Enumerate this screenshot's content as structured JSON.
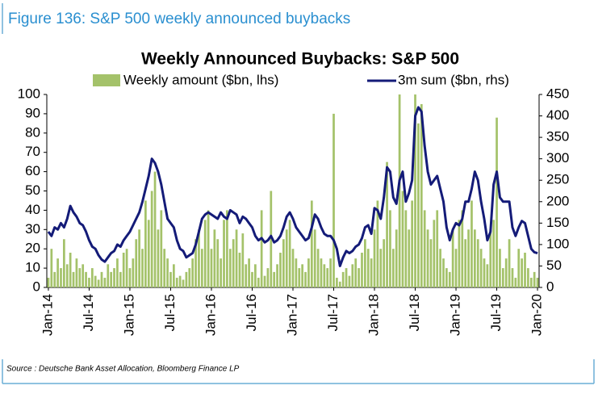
{
  "header": {
    "title": "Figure 136: S&P 500 weekly announced buybacks"
  },
  "chart_data": {
    "type": "bar-line",
    "title": "Weekly Announced Buybacks: S&P 500",
    "categories": [
      "Jan-14",
      null,
      null,
      null,
      null,
      null,
      null,
      null,
      null,
      null,
      null,
      null,
      null,
      "Jul-14",
      null,
      null,
      null,
      null,
      null,
      null,
      null,
      null,
      null,
      null,
      null,
      null,
      "Jan-15",
      null,
      null,
      null,
      null,
      null,
      null,
      null,
      null,
      null,
      null,
      null,
      null,
      "Jul-15",
      null,
      null,
      null,
      null,
      null,
      null,
      null,
      null,
      null,
      null,
      null,
      null,
      "Jan-16",
      null,
      null,
      null,
      null,
      null,
      null,
      null,
      null,
      null,
      null,
      null,
      null,
      "Jul-16",
      null,
      null,
      null,
      null,
      null,
      null,
      null,
      null,
      null,
      null,
      null,
      null,
      "Jan-17",
      null,
      null,
      null,
      null,
      null,
      null,
      null,
      null,
      null,
      null,
      null,
      null,
      "Jul-17",
      null,
      null,
      null,
      null,
      null,
      null,
      null,
      null,
      null,
      null,
      null,
      null,
      "Jan-18",
      null,
      null,
      null,
      null,
      null,
      null,
      null,
      null,
      null,
      null,
      null,
      null,
      "Jul-18",
      null,
      null,
      null,
      null,
      null,
      null,
      null,
      null,
      null,
      null,
      null,
      null,
      "Jan-19",
      null,
      null,
      null,
      null,
      null,
      null,
      null,
      null,
      null,
      null,
      null,
      null,
      "Jul-19",
      null,
      null,
      null,
      null,
      null,
      null,
      null,
      null,
      null,
      null,
      null,
      null,
      "Jan-20"
    ],
    "series": [
      {
        "name": "Weekly amount ($bn, lhs)",
        "type": "bar",
        "color": "#a4c26a",
        "axis": "y",
        "values": [
          5,
          20,
          8,
          15,
          10,
          25,
          12,
          18,
          8,
          15,
          10,
          12,
          8,
          5,
          10,
          6,
          4,
          8,
          5,
          12,
          8,
          10,
          15,
          8,
          18,
          20,
          10,
          15,
          25,
          30,
          20,
          45,
          35,
          50,
          60,
          30,
          40,
          20,
          15,
          8,
          12,
          5,
          6,
          4,
          8,
          10,
          15,
          25,
          30,
          20,
          35,
          40,
          20,
          30,
          25,
          15,
          35,
          40,
          20,
          25,
          30,
          18,
          28,
          12,
          15,
          8,
          12,
          5,
          40,
          6,
          10,
          50,
          8,
          12,
          18,
          25,
          30,
          35,
          20,
          15,
          10,
          12,
          8,
          15,
          45,
          30,
          20,
          15,
          12,
          10,
          15,
          90,
          5,
          3,
          8,
          10,
          6,
          12,
          15,
          10,
          18,
          25,
          20,
          15,
          30,
          45,
          20,
          25,
          65,
          40,
          20,
          30,
          100,
          50,
          40,
          30,
          45,
          100,
          85,
          95,
          40,
          30,
          25,
          35,
          40,
          20,
          15,
          10,
          8,
          30,
          20,
          35,
          40,
          25,
          30,
          45,
          30,
          25,
          20,
          15,
          12,
          30,
          35,
          88,
          20,
          10,
          15,
          25,
          10,
          5,
          20,
          15,
          18,
          10,
          5,
          8,
          5
        ]
      },
      {
        "name": "3m sum ($bn, rhs)",
        "type": "line",
        "color": "#141b78",
        "axis": "y2",
        "values": [
          130,
          120,
          140,
          135,
          150,
          140,
          160,
          190,
          175,
          165,
          150,
          145,
          130,
          110,
          95,
          90,
          75,
          65,
          60,
          70,
          80,
          85,
          100,
          95,
          110,
          120,
          130,
          145,
          160,
          175,
          200,
          230,
          260,
          300,
          290,
          270,
          240,
          200,
          160,
          150,
          140,
          110,
          90,
          85,
          70,
          75,
          80,
          100,
          130,
          160,
          170,
          175,
          170,
          165,
          160,
          175,
          165,
          160,
          180,
          175,
          170,
          150,
          165,
          160,
          150,
          140,
          120,
          110,
          115,
          105,
          110,
          120,
          105,
          110,
          120,
          140,
          165,
          175,
          160,
          140,
          130,
          120,
          110,
          115,
          140,
          170,
          160,
          140,
          125,
          120,
          120,
          110,
          90,
          50,
          70,
          85,
          80,
          85,
          95,
          100,
          115,
          140,
          145,
          125,
          185,
          180,
          160,
          210,
          280,
          270,
          210,
          195,
          250,
          270,
          200,
          220,
          250,
          400,
          420,
          410,
          330,
          270,
          240,
          250,
          260,
          230,
          200,
          140,
          110,
          135,
          150,
          145,
          160,
          200,
          200,
          230,
          270,
          250,
          200,
          160,
          110,
          130,
          240,
          270,
          210,
          200,
          200,
          200,
          140,
          120,
          140,
          155,
          150,
          120,
          90,
          82,
          80
        ]
      }
    ],
    "ylim": [
      0,
      100
    ],
    "yticks": [
      0,
      10,
      20,
      30,
      40,
      50,
      60,
      70,
      80,
      90,
      100
    ],
    "y2lim": [
      0,
      450
    ],
    "y2ticks": [
      0,
      50,
      100,
      150,
      200,
      250,
      300,
      350,
      400,
      450
    ],
    "grid": false
  },
  "footer": {
    "source": "Source : Deutsche Bank Asset Allocation, Bloomberg Finance LP"
  }
}
